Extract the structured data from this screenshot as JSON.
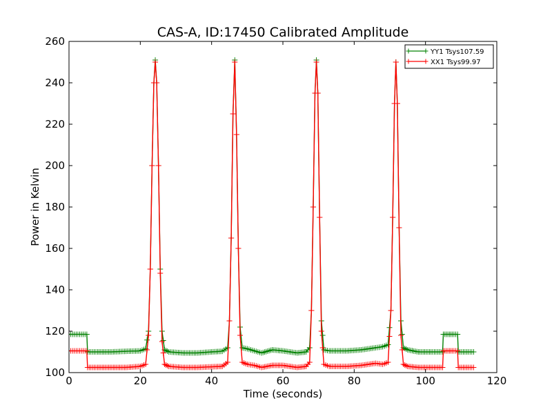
{
  "chart_data": {
    "type": "line",
    "title": "CAS-A, ID:17450 Calibrated Amplitude",
    "xlabel": "Time (seconds)",
    "ylabel": "Power in Kelvin",
    "xlim": [
      0,
      120
    ],
    "ylim": [
      100,
      260
    ],
    "x_ticks": [
      "0",
      "20",
      "40",
      "60",
      "80",
      "100",
      "120"
    ],
    "y_ticks": [
      "100",
      "120",
      "140",
      "160",
      "180",
      "200",
      "220",
      "240",
      "260"
    ],
    "grid": false,
    "legend_position": "top-right",
    "marker": "+",
    "series": [
      {
        "name": "YY1 Tsys107.59",
        "color": "#008000",
        "points": [
          [
            0,
            118.5
          ],
          [
            2,
            118.5
          ],
          [
            4,
            118.5
          ],
          [
            5,
            118.5
          ],
          [
            5.2,
            110
          ],
          [
            8,
            110
          ],
          [
            12,
            110
          ],
          [
            16,
            110.3
          ],
          [
            20,
            110.5
          ],
          [
            21.5,
            111.5
          ],
          [
            22.3,
            120
          ],
          [
            22.8,
            150
          ],
          [
            23.3,
            200
          ],
          [
            23.8,
            240
          ],
          [
            24.2,
            251
          ],
          [
            24.6,
            240
          ],
          [
            25.1,
            200
          ],
          [
            25.6,
            150
          ],
          [
            26.1,
            120
          ],
          [
            26.8,
            111
          ],
          [
            28,
            110
          ],
          [
            32,
            109.5
          ],
          [
            36,
            109.5
          ],
          [
            40,
            110
          ],
          [
            43,
            110.3
          ],
          [
            44.5,
            112
          ],
          [
            45,
            125
          ],
          [
            45.5,
            165
          ],
          [
            46,
            225
          ],
          [
            46.5,
            251
          ],
          [
            47,
            215
          ],
          [
            47.5,
            160
          ],
          [
            48,
            122
          ],
          [
            48.6,
            112
          ],
          [
            50,
            111.5
          ],
          [
            52,
            110.5
          ],
          [
            54,
            109.5
          ],
          [
            57,
            111
          ],
          [
            60,
            110.5
          ],
          [
            64,
            109.5
          ],
          [
            66.5,
            110
          ],
          [
            67.5,
            112
          ],
          [
            68,
            130
          ],
          [
            68.5,
            180
          ],
          [
            69,
            235
          ],
          [
            69.4,
            251
          ],
          [
            69.8,
            235
          ],
          [
            70.3,
            175
          ],
          [
            70.8,
            125
          ],
          [
            71.5,
            111
          ],
          [
            73,
            110.5
          ],
          [
            78,
            110.5
          ],
          [
            82,
            111
          ],
          [
            86,
            112
          ],
          [
            88,
            112.5
          ],
          [
            89.5,
            113.5
          ],
          [
            90.3,
            130
          ],
          [
            90.8,
            175
          ],
          [
            91.3,
            230
          ],
          [
            91.7,
            250
          ],
          [
            92.1,
            230
          ],
          [
            92.6,
            170
          ],
          [
            93.1,
            125
          ],
          [
            93.8,
            112
          ],
          [
            95,
            111
          ],
          [
            98,
            110
          ],
          [
            102,
            110
          ],
          [
            104.8,
            110
          ],
          [
            105,
            118.5
          ],
          [
            108,
            118.5
          ],
          [
            109,
            118.5
          ],
          [
            109.2,
            110
          ],
          [
            112,
            110
          ],
          [
            113.5,
            110
          ]
        ]
      },
      {
        "name": "XX1 Tsys99.97",
        "color": "#ff0000",
        "points": [
          [
            0,
            110.5
          ],
          [
            2,
            110.5
          ],
          [
            4,
            110.5
          ],
          [
            5,
            110.5
          ],
          [
            5.2,
            102.5
          ],
          [
            8,
            102.5
          ],
          [
            12,
            102.5
          ],
          [
            16,
            102.5
          ],
          [
            20,
            103
          ],
          [
            21.5,
            104
          ],
          [
            22.3,
            118
          ],
          [
            22.8,
            150
          ],
          [
            23.3,
            200
          ],
          [
            23.8,
            240
          ],
          [
            24.2,
            250
          ],
          [
            24.6,
            240
          ],
          [
            25.1,
            200
          ],
          [
            25.6,
            148
          ],
          [
            26.1,
            115
          ],
          [
            26.8,
            104
          ],
          [
            28,
            103
          ],
          [
            32,
            102.5
          ],
          [
            36,
            102.5
          ],
          [
            40,
            102.8
          ],
          [
            43,
            103
          ],
          [
            44.5,
            105
          ],
          [
            45,
            125
          ],
          [
            45.5,
            165
          ],
          [
            46,
            225
          ],
          [
            46.5,
            250
          ],
          [
            47,
            215
          ],
          [
            47.5,
            160
          ],
          [
            48,
            118
          ],
          [
            48.6,
            105
          ],
          [
            50,
            104
          ],
          [
            52,
            103.5
          ],
          [
            54,
            102.5
          ],
          [
            57,
            103.5
          ],
          [
            60,
            103.5
          ],
          [
            64,
            102.5
          ],
          [
            66.5,
            103
          ],
          [
            67.5,
            105
          ],
          [
            68,
            130
          ],
          [
            68.5,
            180
          ],
          [
            69,
            235
          ],
          [
            69.4,
            250
          ],
          [
            69.8,
            235
          ],
          [
            70.3,
            175
          ],
          [
            70.8,
            120
          ],
          [
            71.5,
            104
          ],
          [
            73,
            103
          ],
          [
            78,
            103
          ],
          [
            82,
            103.5
          ],
          [
            86,
            104.5
          ],
          [
            88,
            104
          ],
          [
            89.5,
            105
          ],
          [
            90.3,
            130
          ],
          [
            90.8,
            175
          ],
          [
            91.3,
            230
          ],
          [
            91.7,
            250
          ],
          [
            92.1,
            230
          ],
          [
            92.6,
            170
          ],
          [
            93.1,
            118
          ],
          [
            93.8,
            104
          ],
          [
            95,
            103
          ],
          [
            98,
            102.5
          ],
          [
            102,
            102.5
          ],
          [
            104.8,
            102.5
          ],
          [
            105,
            110.5
          ],
          [
            108,
            110.5
          ],
          [
            109,
            110.5
          ],
          [
            109.2,
            102.5
          ],
          [
            112,
            102.5
          ],
          [
            113.5,
            102.5
          ]
        ]
      }
    ]
  }
}
